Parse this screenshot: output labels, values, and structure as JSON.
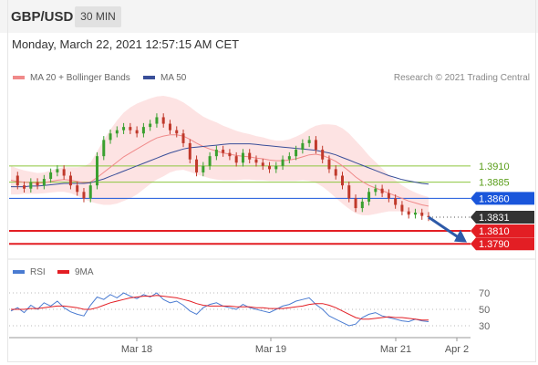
{
  "header": {
    "symbol": "GBP/USD",
    "timeframe": "30 MIN"
  },
  "datetime": "Monday, March 22, 2021 12:57:15 AM CET",
  "legend": {
    "bollinger": "MA 20 + Bollinger Bands",
    "ma50": "MA 50",
    "rsi": "RSI",
    "rsi_ma": "9MA"
  },
  "credit": "Research © 2021 Trading Central",
  "colors": {
    "ma20": "#f08a8a",
    "band": "#fde3e3",
    "ma50": "#3a4f99",
    "green_level": "#8dc63f",
    "blue_level": "#1a56db",
    "red_level": "#e31e24",
    "current": "#333333",
    "rsi": "#4a7bd1",
    "rsi_ma": "#e31e24",
    "candle_up": "#3aa02f",
    "candle_down": "#c0392b"
  },
  "chart_data": {
    "type": "candlestick",
    "price_ylim": [
      1.3765,
      1.4025
    ],
    "x_labels": [
      "Mar 18",
      "Mar 19",
      "Mar 21",
      "Apr 2"
    ],
    "levels": [
      {
        "value": 1.391,
        "label": "1.3910",
        "kind": "resistance"
      },
      {
        "value": 1.3885,
        "label": "1.3885",
        "kind": "resistance"
      },
      {
        "value": 1.386,
        "label": "1.3860",
        "kind": "pivot"
      },
      {
        "value": 1.3831,
        "label": "1.3831",
        "kind": "current"
      },
      {
        "value": 1.381,
        "label": "1.3810",
        "kind": "support"
      },
      {
        "value": 1.379,
        "label": "1.3790",
        "kind": "support"
      }
    ],
    "close_path": [
      1.3895,
      1.388,
      1.3875,
      1.3885,
      1.388,
      1.389,
      1.39,
      1.3905,
      1.3895,
      1.388,
      1.387,
      1.386,
      1.388,
      1.3925,
      1.395,
      1.396,
      1.3965,
      1.397,
      1.3965,
      1.396,
      1.397,
      1.3975,
      1.3985,
      1.3975,
      1.3965,
      1.396,
      1.3945,
      1.392,
      1.39,
      1.391,
      1.3925,
      1.3935,
      1.393,
      1.3925,
      1.3915,
      1.393,
      1.392,
      1.3915,
      1.391,
      1.3905,
      1.391,
      1.392,
      1.3925,
      1.3935,
      1.3945,
      1.395,
      1.3935,
      1.392,
      1.3905,
      1.3895,
      1.388,
      1.386,
      1.3845,
      1.3855,
      1.387,
      1.3875,
      1.3868,
      1.386,
      1.385,
      1.384,
      1.3835,
      1.3838,
      1.3833,
      1.3831
    ],
    "ma20": [
      1.3888,
      1.3886,
      1.3885,
      1.3884,
      1.3883,
      1.3884,
      1.3886,
      1.3888,
      1.3889,
      1.3888,
      1.3886,
      1.3884,
      1.3885,
      1.3892,
      1.39,
      1.3908,
      1.3916,
      1.3924,
      1.393,
      1.3936,
      1.3942,
      1.3948,
      1.3953,
      1.3956,
      1.3958,
      1.3958,
      1.3956,
      1.3951,
      1.3945,
      1.394,
      1.3936,
      1.3933,
      1.393,
      1.3928,
      1.3926,
      1.3925,
      1.3924,
      1.3922,
      1.3921,
      1.3919,
      1.3918,
      1.3918,
      1.3919,
      1.3921,
      1.3924,
      1.3927,
      1.3928,
      1.3926,
      1.3922,
      1.3917,
      1.391,
      1.3902,
      1.3893,
      1.3886,
      1.388,
      1.3876,
      1.3872,
      1.3868,
      1.3864,
      1.386,
      1.3856,
      1.3853,
      1.385,
      1.3848
    ],
    "ma50": [
      1.3878,
      1.3878,
      1.3878,
      1.3879,
      1.3879,
      1.388,
      1.3881,
      1.3882,
      1.3883,
      1.3883,
      1.3883,
      1.3883,
      1.3884,
      1.3887,
      1.389,
      1.3894,
      1.3898,
      1.3902,
      1.3906,
      1.391,
      1.3914,
      1.3918,
      1.3922,
      1.3926,
      1.393,
      1.3933,
      1.3936,
      1.3938,
      1.3939,
      1.394,
      1.3941,
      1.3942,
      1.3943,
      1.3944,
      1.3944,
      1.3944,
      1.3944,
      1.3943,
      1.3942,
      1.3941,
      1.394,
      1.3939,
      1.3938,
      1.3937,
      1.3936,
      1.3935,
      1.3934,
      1.3932,
      1.393,
      1.3927,
      1.3923,
      1.3919,
      1.3915,
      1.3911,
      1.3907,
      1.3903,
      1.3899,
      1.3895,
      1.3892,
      1.3889,
      1.3887,
      1.3885,
      1.3883,
      1.3882
    ],
    "band_width": [
      0.0022,
      0.002,
      0.0018,
      0.0017,
      0.0016,
      0.0016,
      0.0017,
      0.0018,
      0.0019,
      0.002,
      0.0022,
      0.0025,
      0.003,
      0.004,
      0.005,
      0.0058,
      0.0064,
      0.0068,
      0.007,
      0.007,
      0.0068,
      0.0066,
      0.0064,
      0.0062,
      0.0058,
      0.0055,
      0.0052,
      0.005,
      0.0048,
      0.0046,
      0.0045,
      0.0044,
      0.0042,
      0.004,
      0.0038,
      0.0036,
      0.0035,
      0.0034,
      0.0033,
      0.0032,
      0.0031,
      0.0031,
      0.0032,
      0.0034,
      0.0036,
      0.004,
      0.0044,
      0.0048,
      0.0052,
      0.0056,
      0.0058,
      0.0058,
      0.0056,
      0.0052,
      0.0046,
      0.004,
      0.0034,
      0.0028,
      0.0024,
      0.002,
      0.0018,
      0.0016,
      0.0015,
      0.0014
    ],
    "rsi": {
      "ylim": [
        20,
        80
      ],
      "ticks": [
        70,
        50,
        30
      ],
      "values": [
        48,
        52,
        46,
        55,
        50,
        58,
        54,
        60,
        52,
        47,
        44,
        42,
        55,
        65,
        62,
        68,
        64,
        70,
        66,
        63,
        68,
        65,
        70,
        62,
        58,
        60,
        55,
        48,
        44,
        52,
        56,
        58,
        54,
        52,
        50,
        56,
        52,
        50,
        48,
        46,
        50,
        54,
        56,
        60,
        62,
        64,
        56,
        50,
        42,
        38,
        34,
        30,
        32,
        40,
        44,
        46,
        42,
        40,
        38,
        36,
        35,
        38,
        36,
        35
      ],
      "ma": [
        50,
        50,
        50,
        51,
        51,
        52,
        53,
        54,
        54,
        53,
        52,
        50,
        50,
        52,
        55,
        58,
        60,
        62,
        64,
        65,
        66,
        66,
        67,
        66,
        65,
        64,
        62,
        60,
        57,
        55,
        54,
        54,
        54,
        54,
        53,
        53,
        53,
        52,
        52,
        51,
        51,
        51,
        52,
        53,
        54,
        56,
        57,
        57,
        55,
        52,
        48,
        44,
        40,
        38,
        38,
        39,
        40,
        41,
        40,
        40,
        39,
        38,
        37,
        37
      ]
    }
  }
}
